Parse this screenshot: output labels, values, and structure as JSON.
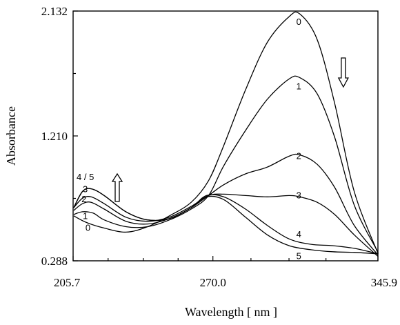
{
  "chart_data": {
    "type": "line",
    "xlabel": "Wavelength [ nm ]",
    "ylabel": "Absorbance",
    "xlim": [
      205.7,
      345.9
    ],
    "ylim": [
      0.288,
      2.132
    ],
    "x_ticks": [
      "205.7",
      "270.0",
      "345.9"
    ],
    "y_ticks": [
      "0.288",
      "1.210",
      "2.132"
    ],
    "grid": false,
    "legend": "none",
    "arrows": [
      {
        "direction": "up",
        "near_x": 226
      },
      {
        "direction": "down",
        "near_x": 330
      }
    ],
    "series": [
      {
        "name": "0",
        "x": [
          206,
          212,
          220,
          230,
          240,
          250,
          260,
          268,
          275,
          285,
          295,
          305,
          310,
          318,
          326,
          335,
          346
        ],
        "y": [
          0.62,
          0.57,
          0.53,
          0.5,
          0.54,
          0.62,
          0.72,
          0.88,
          1.14,
          1.55,
          1.9,
          2.09,
          2.11,
          1.92,
          1.45,
          0.8,
          0.34
        ]
      },
      {
        "name": "1",
        "x": [
          206,
          210,
          215,
          220,
          230,
          240,
          250,
          260,
          268,
          275,
          285,
          295,
          305,
          310,
          318,
          326,
          335,
          346
        ],
        "y": [
          0.63,
          0.65,
          0.64,
          0.59,
          0.54,
          0.54,
          0.59,
          0.67,
          0.77,
          0.99,
          1.25,
          1.48,
          1.63,
          1.64,
          1.52,
          1.2,
          0.7,
          0.35
        ]
      },
      {
        "name": "2",
        "x": [
          206,
          210,
          214,
          220,
          230,
          240,
          250,
          260,
          268,
          275,
          285,
          295,
          305,
          310,
          318,
          326,
          335,
          346
        ],
        "y": [
          0.66,
          0.71,
          0.72,
          0.67,
          0.58,
          0.56,
          0.6,
          0.68,
          0.77,
          0.85,
          0.93,
          0.98,
          1.06,
          1.07,
          1.0,
          0.83,
          0.55,
          0.33
        ]
      },
      {
        "name": "3",
        "x": [
          206,
          210,
          214,
          220,
          230,
          240,
          250,
          260,
          268,
          275,
          285,
          295,
          305,
          310,
          318,
          326,
          335,
          346
        ],
        "y": [
          0.68,
          0.75,
          0.76,
          0.71,
          0.61,
          0.58,
          0.61,
          0.69,
          0.77,
          0.78,
          0.77,
          0.76,
          0.77,
          0.76,
          0.72,
          0.63,
          0.48,
          0.32
        ]
      },
      {
        "name": "4 / 5",
        "x": [
          206,
          210,
          214,
          220,
          230,
          240,
          250,
          260,
          267,
          275,
          285,
          295,
          305,
          315,
          325,
          335,
          346
        ],
        "y": [
          0.68,
          0.8,
          0.82,
          0.77,
          0.65,
          0.59,
          0.6,
          0.68,
          0.77,
          0.76,
          0.67,
          0.55,
          0.45,
          0.41,
          0.4,
          0.38,
          0.34
        ]
      },
      {
        "name": "5",
        "x": [
          206,
          210,
          214,
          220,
          230,
          240,
          250,
          260,
          267,
          275,
          285,
          295,
          305,
          315,
          325,
          335,
          346
        ],
        "y": [
          0.68,
          0.8,
          0.82,
          0.77,
          0.65,
          0.59,
          0.6,
          0.68,
          0.76,
          0.74,
          0.61,
          0.48,
          0.4,
          0.37,
          0.355,
          0.35,
          0.34
        ]
      }
    ],
    "curve_labels": [
      {
        "text": "0",
        "x": 309.5,
        "y": 2.03
      },
      {
        "text": "1",
        "x": 309.5,
        "y": 1.555
      },
      {
        "text": "2",
        "x": 309.5,
        "y": 1.04
      },
      {
        "text": "3",
        "x": 309.5,
        "y": 0.75
      },
      {
        "text": "4",
        "x": 309.5,
        "y": 0.46
      },
      {
        "text": "5",
        "x": 309.5,
        "y": 0.3
      },
      {
        "text": "4 / 5",
        "x": 211.3,
        "y": 0.885
      },
      {
        "text": "3",
        "x": 211.3,
        "y": 0.795
      },
      {
        "text": "2",
        "x": 210.7,
        "y": 0.72
      },
      {
        "text": "1",
        "x": 211.3,
        "y": 0.595
      },
      {
        "text": "0",
        "x": 212.5,
        "y": 0.51
      }
    ]
  }
}
